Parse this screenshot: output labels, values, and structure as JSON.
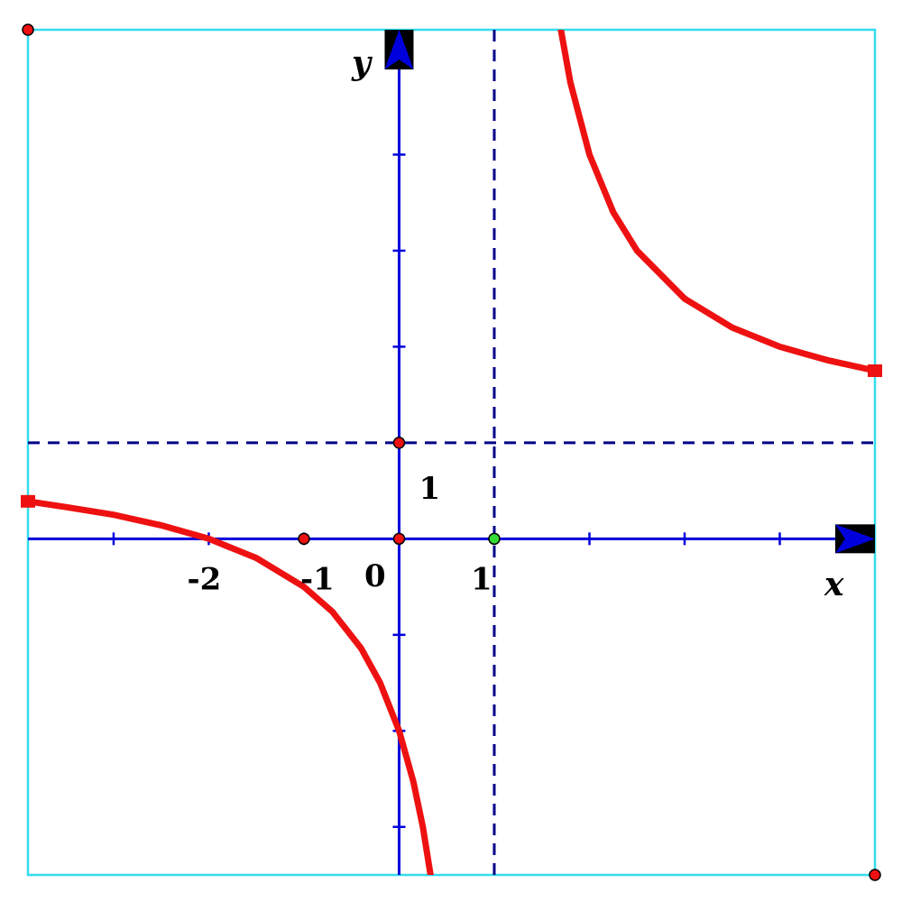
{
  "chart_data": {
    "type": "line",
    "title": "",
    "xlabel": "x",
    "ylabel": "y",
    "xlim": [
      -3.9,
      5
    ],
    "ylim": [
      -3.5,
      5.3
    ],
    "x_tick_values": [
      -3,
      -2,
      -1,
      1,
      2,
      3,
      4
    ],
    "y_tick_values": [
      -3,
      -2,
      -1,
      1,
      2,
      3,
      4
    ],
    "x_tick_labels": [
      {
        "value": -2,
        "text": "-2"
      },
      {
        "value": -1,
        "text": "-1"
      },
      {
        "value": 1,
        "text": "1"
      }
    ],
    "y_tick_labels": [
      {
        "value": 1,
        "text": "1"
      }
    ],
    "origin_label": "0",
    "asymptotes": {
      "vertical_x": 1,
      "horizontal_y": 1
    },
    "series": [
      {
        "x": [
          -3.9,
          -3.5,
          -3,
          -2.5,
          -2,
          -1.5,
          -1,
          -0.7,
          -0.4,
          -0.2,
          0,
          0.15,
          0.25,
          0.35
        ],
        "y": [
          0.39,
          0.33,
          0.25,
          0.14,
          0,
          -0.2,
          -0.5,
          -0.76,
          -1.14,
          -1.5,
          -2,
          -2.53,
          -3,
          -3.62
        ]
      },
      {
        "x": [
          1.68,
          1.8,
          2,
          2.25,
          2.5,
          3,
          3.5,
          4,
          4.5,
          5
        ],
        "y": [
          5.41,
          4.75,
          4,
          3.4,
          3,
          2.5,
          2.2,
          2,
          1.86,
          1.75
        ]
      }
    ],
    "points": [
      {
        "x": -1,
        "y": 0,
        "color": "#ee1111"
      },
      {
        "x": 0,
        "y": 0,
        "color": "#ee1111"
      },
      {
        "x": 1,
        "y": 0,
        "color": "#33dd33"
      },
      {
        "x": 0,
        "y": 1,
        "color": "#ee1111"
      },
      {
        "x": -3.9,
        "y": 5.3,
        "color": "#ee1111"
      },
      {
        "x": 5,
        "y": -3.5,
        "color": "#ee1111"
      }
    ],
    "grid": false,
    "colors": {
      "axis": "#0000dd",
      "curve": "#ee1111",
      "asymptote": "#000088",
      "frame": "#33ddee",
      "arrow_box": "#000000"
    }
  }
}
